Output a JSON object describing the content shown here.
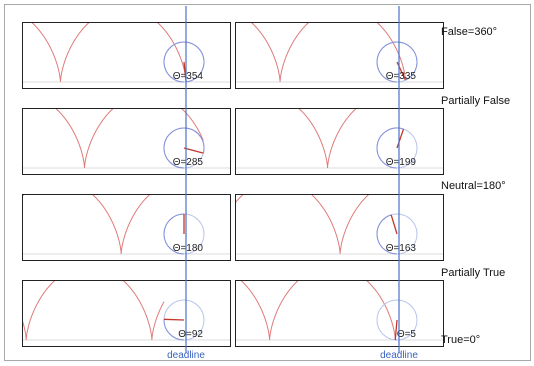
{
  "panels": [
    {
      "theta_label": "Θ=354",
      "theta_deg": 354
    },
    {
      "theta_label": "Θ=335",
      "theta_deg": 335
    },
    {
      "theta_label": "Θ=285",
      "theta_deg": 285
    },
    {
      "theta_label": "Θ=199",
      "theta_deg": 199
    },
    {
      "theta_label": "Θ=180",
      "theta_deg": 180
    },
    {
      "theta_label": "Θ=163",
      "theta_deg": 163
    },
    {
      "theta_label": "Θ=92",
      "theta_deg": 92
    },
    {
      "theta_label": "Θ=5",
      "theta_deg": 5
    }
  ],
  "deadline_label": "deadline",
  "scale_labels": [
    "False=360°",
    "Partially False",
    "Neutral=180°",
    "Partially True",
    "True=0°"
  ],
  "colors": {
    "cycloid": "#e07a7a",
    "wheel": "#b8c4ec",
    "deadline": "#4a72cc"
  }
}
